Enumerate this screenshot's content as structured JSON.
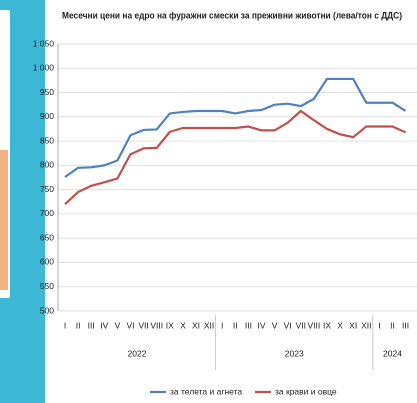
{
  "chart_data": {
    "type": "line",
    "title": "Месечни цени на едро на фуражни смески за преживни животни (лева/тон с ДДС)",
    "categories": [
      "I",
      "II",
      "III",
      "IV",
      "V",
      "VI",
      "VII",
      "VIII",
      "IX",
      "X",
      "XI",
      "XII",
      "I",
      "II",
      "III",
      "IV",
      "V",
      "VI",
      "VII",
      "VIII",
      "IX",
      "X",
      "XI",
      "XII",
      "I",
      "II",
      "III"
    ],
    "year_labels": [
      "2022",
      "2023",
      "2024"
    ],
    "series": [
      {
        "name": "за телета и агнета",
        "color": "#4f81bd",
        "values": [
          776,
          795,
          796,
          800,
          810,
          862,
          873,
          874,
          907,
          910,
          912,
          912,
          912,
          907,
          912,
          914,
          925,
          927,
          922,
          937,
          978,
          978,
          978,
          929,
          929,
          929,
          912
        ]
      },
      {
        "name": "за крави и овце",
        "color": "#c0504d",
        "values": [
          720,
          745,
          758,
          765,
          773,
          823,
          835,
          836,
          869,
          877,
          877,
          877,
          877,
          877,
          880,
          872,
          872,
          888,
          912,
          893,
          875,
          864,
          858,
          880,
          880,
          880,
          868
        ]
      }
    ],
    "ylim": [
      500,
      1050
    ],
    "yticks": [
      500,
      550,
      600,
      650,
      700,
      750,
      800,
      850,
      900,
      950,
      {
        "value": 1000,
        "label": "1 000"
      },
      {
        "value": 1050,
        "label": "1 050"
      }
    ],
    "grid": true,
    "legend": "bottom"
  }
}
